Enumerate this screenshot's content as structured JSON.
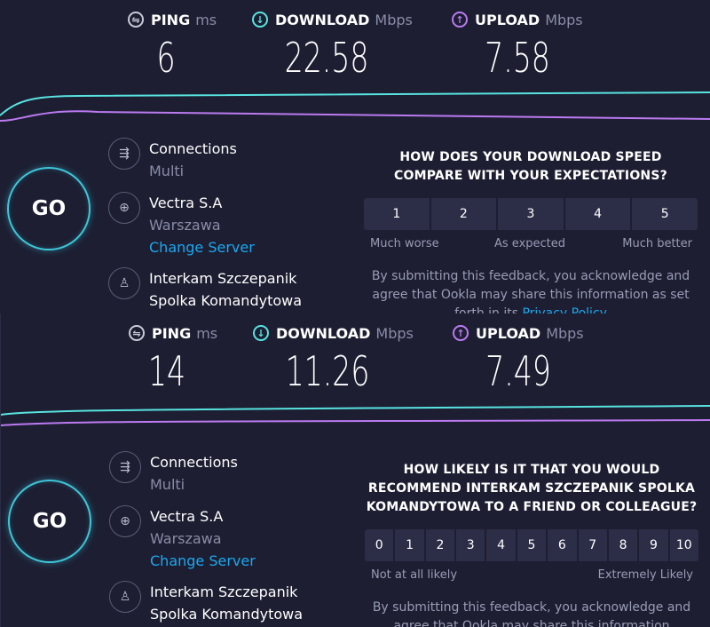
{
  "panels": [
    {
      "stats": {
        "ping": {
          "label": "PING",
          "unit": "ms",
          "value": "6"
        },
        "download": {
          "label": "DOWNLOAD",
          "unit": "Mbps",
          "value": "22.58"
        },
        "upload": {
          "label": "UPLOAD",
          "unit": "Mbps",
          "value": "7.58"
        }
      },
      "go_label": "GO",
      "connections": {
        "title": "Connections",
        "value": "Multi"
      },
      "server": {
        "name": "Vectra S.A",
        "location": "Warszawa",
        "change_link": "Change Server"
      },
      "provider": {
        "line1": "Interkam Szczepanik",
        "line2": "Spolka Komandytowa"
      },
      "survey": {
        "question": "HOW DOES YOUR DOWNLOAD SPEED COMPARE WITH YOUR EXPECTATIONS?",
        "options": [
          "1",
          "2",
          "3",
          "4",
          "5"
        ],
        "label_left": "Much worse",
        "label_mid": "As expected",
        "label_right": "Much better",
        "disclaimer": "By submitting this feedback, you acknowledge and agree that Ookla may share this information as set forth in its",
        "privacy_link": "Privacy Policy"
      }
    },
    {
      "stats": {
        "ping": {
          "label": "PING",
          "unit": "ms",
          "value": "14"
        },
        "download": {
          "label": "DOWNLOAD",
          "unit": "Mbps",
          "value": "11.26"
        },
        "upload": {
          "label": "UPLOAD",
          "unit": "Mbps",
          "value": "7.49"
        }
      },
      "go_label": "GO",
      "connections": {
        "title": "Connections",
        "value": "Multi"
      },
      "server": {
        "name": "Vectra S.A",
        "location": "Warszawa",
        "change_link": "Change Server"
      },
      "provider": {
        "line1": "Interkam Szczepanik",
        "line2": "Spolka Komandytowa"
      },
      "survey": {
        "question": "HOW LIKELY IS IT THAT YOU WOULD RECOMMEND INTERKAM SZCZEPANIK SPOLKA KOMANDYTOWA TO A FRIEND OR COLLEAGUE?",
        "options": [
          "0",
          "1",
          "2",
          "3",
          "4",
          "5",
          "6",
          "7",
          "8",
          "9",
          "10"
        ],
        "label_left": "Not at all likely",
        "label_right": "Extremely Likely",
        "disclaimer": "By submitting this feedback, you acknowledge and agree that Ookla may share this information"
      }
    }
  ],
  "colors": {
    "background": "#1d1e32",
    "download_accent": "#58e3e0",
    "upload_accent": "#bb7af0",
    "link": "#1ba8ef",
    "go_ring": "#3ec6d9"
  },
  "icons": {
    "ping": "ping-icon",
    "download": "download-arrow-icon",
    "upload": "upload-arrow-icon",
    "connections": "connections-arrows-icon",
    "server": "globe-icon",
    "provider": "user-icon"
  }
}
